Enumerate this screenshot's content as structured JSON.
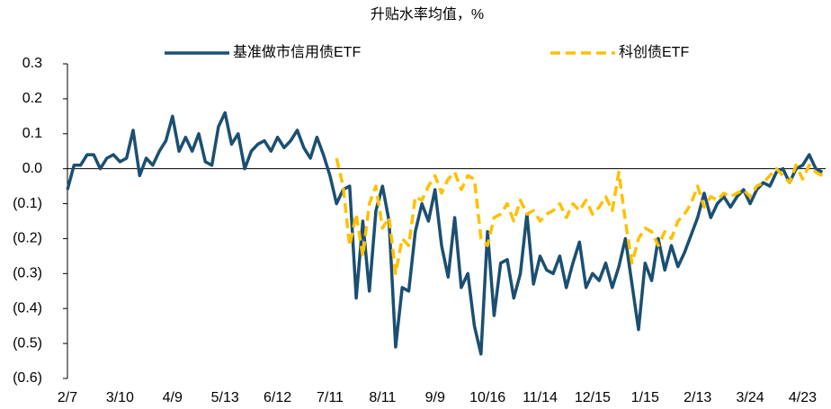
{
  "chart_data": {
    "type": "line",
    "title": "升贴水率均值，%",
    "categories": [
      "2/7",
      null,
      null,
      null,
      null,
      null,
      null,
      null,
      "3/10",
      null,
      null,
      null,
      null,
      null,
      null,
      null,
      "4/9",
      null,
      null,
      null,
      null,
      null,
      null,
      null,
      "5/13",
      null,
      null,
      null,
      null,
      null,
      null,
      null,
      "6/12",
      null,
      null,
      null,
      null,
      null,
      null,
      null,
      "7/11",
      null,
      null,
      null,
      null,
      null,
      null,
      null,
      "8/11",
      null,
      null,
      null,
      null,
      null,
      null,
      null,
      "9/9",
      null,
      null,
      null,
      null,
      null,
      null,
      null,
      "10/16",
      null,
      null,
      null,
      null,
      null,
      null,
      null,
      "11/14",
      null,
      null,
      null,
      null,
      null,
      null,
      null,
      "12/15",
      null,
      null,
      null,
      null,
      null,
      null,
      null,
      "1/15",
      null,
      null,
      null,
      null,
      null,
      null,
      null,
      "2/13",
      null,
      null,
      null,
      null,
      null,
      null,
      null,
      "3/24",
      null,
      null,
      null,
      null,
      null,
      null,
      null,
      "4/23",
      null,
      null,
      null
    ],
    "series": [
      {
        "name": "基准做市信用债ETF",
        "color": "#1b4f72",
        "dash": false,
        "values": [
          -0.06,
          0.01,
          0.01,
          0.04,
          0.04,
          0.0,
          0.03,
          0.04,
          0.02,
          0.03,
          0.11,
          -0.02,
          0.03,
          0.01,
          0.05,
          0.08,
          0.15,
          0.05,
          0.09,
          0.05,
          0.1,
          0.02,
          0.01,
          0.12,
          0.16,
          0.07,
          0.1,
          0.0,
          0.05,
          0.07,
          0.08,
          0.05,
          0.09,
          0.06,
          0.08,
          0.11,
          0.06,
          0.03,
          0.09,
          0.04,
          -0.02,
          -0.1,
          -0.06,
          -0.05,
          -0.37,
          -0.15,
          -0.35,
          -0.12,
          -0.05,
          -0.15,
          -0.51,
          -0.34,
          -0.35,
          -0.18,
          -0.1,
          -0.15,
          -0.06,
          -0.22,
          -0.31,
          -0.14,
          -0.34,
          -0.3,
          -0.45,
          -0.53,
          -0.18,
          -0.42,
          -0.27,
          -0.26,
          -0.37,
          -0.3,
          -0.13,
          -0.33,
          -0.25,
          -0.29,
          -0.3,
          -0.25,
          -0.34,
          -0.27,
          -0.21,
          -0.34,
          -0.3,
          -0.32,
          -0.27,
          -0.34,
          -0.28,
          -0.2,
          -0.33,
          -0.46,
          -0.27,
          -0.32,
          -0.2,
          -0.29,
          -0.22,
          -0.28,
          -0.24,
          -0.19,
          -0.14,
          -0.07,
          -0.14,
          -0.1,
          -0.08,
          -0.11,
          -0.08,
          -0.06,
          -0.1,
          -0.06,
          -0.04,
          -0.05,
          -0.01,
          0.0,
          -0.04,
          0.0,
          0.01,
          0.04,
          0.0,
          -0.01
        ]
      },
      {
        "name": "科创债ETF",
        "color": "#ffc000",
        "dash": true,
        "values": [
          null,
          null,
          null,
          null,
          null,
          null,
          null,
          null,
          null,
          null,
          null,
          null,
          null,
          null,
          null,
          null,
          null,
          null,
          null,
          null,
          null,
          null,
          null,
          null,
          null,
          null,
          null,
          null,
          null,
          null,
          null,
          null,
          null,
          null,
          null,
          null,
          null,
          null,
          null,
          null,
          null,
          0.03,
          -0.05,
          -0.22,
          -0.13,
          -0.25,
          -0.1,
          -0.05,
          -0.17,
          -0.14,
          -0.3,
          -0.2,
          -0.22,
          -0.08,
          -0.09,
          -0.05,
          -0.02,
          -0.07,
          -0.03,
          -0.01,
          -0.06,
          -0.02,
          -0.03,
          -0.2,
          -0.22,
          -0.14,
          -0.13,
          -0.1,
          -0.15,
          -0.09,
          -0.13,
          -0.12,
          -0.15,
          -0.13,
          -0.12,
          -0.1,
          -0.14,
          -0.1,
          -0.12,
          -0.09,
          -0.13,
          -0.11,
          -0.08,
          -0.12,
          -0.01,
          -0.15,
          -0.27,
          -0.2,
          -0.17,
          -0.18,
          -0.22,
          -0.18,
          -0.2,
          -0.15,
          -0.13,
          -0.1,
          -0.05,
          -0.11,
          -0.08,
          -0.09,
          -0.07,
          -0.08,
          -0.07,
          -0.06,
          -0.08,
          -0.05,
          -0.04,
          -0.02,
          0.0,
          -0.02,
          -0.04,
          0.01,
          -0.03,
          0.01,
          -0.01,
          -0.02
        ]
      }
    ],
    "ylim": [
      -0.6,
      0.3
    ],
    "yticks": [
      0.3,
      0.2,
      0.1,
      {
        "value": 0,
        "label": "0.0"
      },
      {
        "value": -0.1,
        "label": "(0.1)"
      },
      {
        "value": -0.2,
        "label": "(0.2)"
      },
      {
        "value": -0.3,
        "label": "(0.3)"
      },
      {
        "value": -0.4,
        "label": "(0.4)"
      },
      {
        "value": -0.5,
        "label": "(0.5)"
      },
      {
        "value": -0.6,
        "label": "(0.6)"
      }
    ],
    "negative_tick_color": "#ff0000",
    "legend": "top"
  }
}
